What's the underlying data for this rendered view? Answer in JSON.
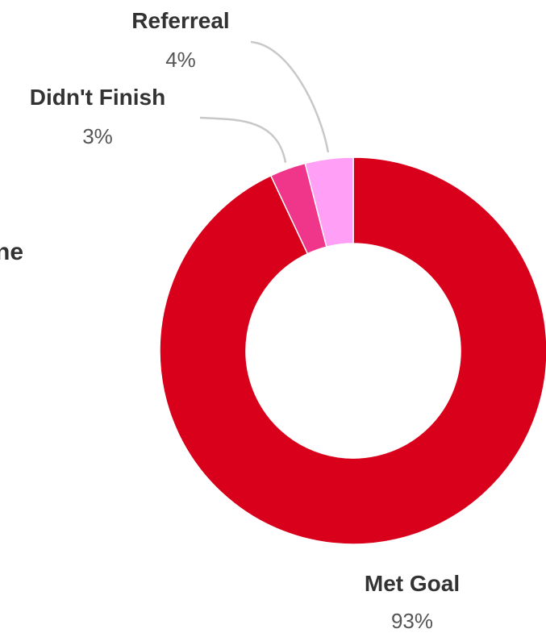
{
  "chart_data": {
    "type": "pie",
    "donut": true,
    "title_fragment": "ne",
    "legend": "none",
    "categories": [
      "Met Goal",
      "Didn't Finish",
      "Referreal"
    ],
    "values": [
      93,
      3,
      4
    ],
    "value_labels": [
      "93%",
      "3%",
      "4%"
    ],
    "colors": [
      "#d9001b",
      "#f0368a",
      "#ff9ff5"
    ]
  }
}
